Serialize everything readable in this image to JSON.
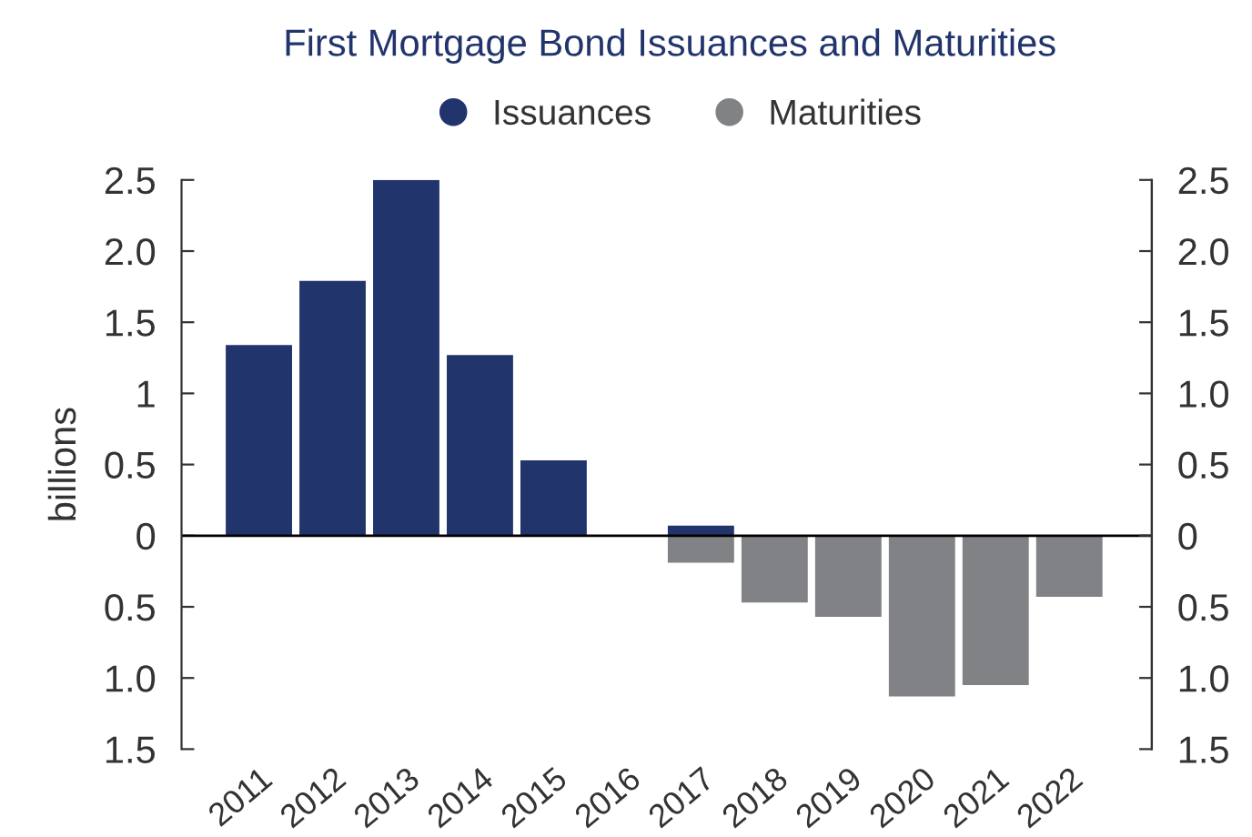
{
  "chart_data": {
    "type": "bar",
    "title": "First Mortgage Bond Issuances and Maturities",
    "ylabel": "billions",
    "categories": [
      "2011",
      "2012",
      "2013",
      "2014",
      "2015",
      "2016",
      "2017",
      "2018",
      "2019",
      "2020",
      "2021",
      "2022"
    ],
    "series": [
      {
        "name": "Issuances",
        "color": "#21346b",
        "values": [
          1.34,
          1.79,
          2.5,
          1.27,
          0.53,
          null,
          0.07,
          null,
          null,
          null,
          null,
          null
        ]
      },
      {
        "name": "Maturities",
        "color": "#818285",
        "values": [
          null,
          null,
          null,
          null,
          null,
          null,
          -0.19,
          -0.47,
          -0.57,
          -1.13,
          -1.05,
          -0.43
        ]
      }
    ],
    "stacked": true,
    "ylim": [
      -1.5,
      2.5
    ],
    "yticks": [
      {
        "value": -1.5,
        "label": "1.5"
      },
      {
        "value": -1.0,
        "label": "1.0"
      },
      {
        "value": -0.5,
        "label": "0.5"
      },
      0,
      0.5,
      1,
      1.5,
      {
        "value": 2.0,
        "label": "2.0"
      },
      2.5
    ],
    "y2lim": [
      -1.5,
      2.5
    ],
    "y2ticks": [
      {
        "value": -1.5,
        "label": "1.5"
      },
      {
        "value": -1.0,
        "label": "1.0"
      },
      {
        "value": -0.5,
        "label": "0.5"
      },
      0,
      0.5,
      {
        "value": 1.0,
        "label": "1.0"
      },
      1.5,
      {
        "value": 2.0,
        "label": "2.0"
      },
      2.5
    ],
    "ref_lines": [
      {
        "axis": "y",
        "value": 0,
        "color": "#000000"
      }
    ],
    "legend": "top",
    "grid": false
  }
}
